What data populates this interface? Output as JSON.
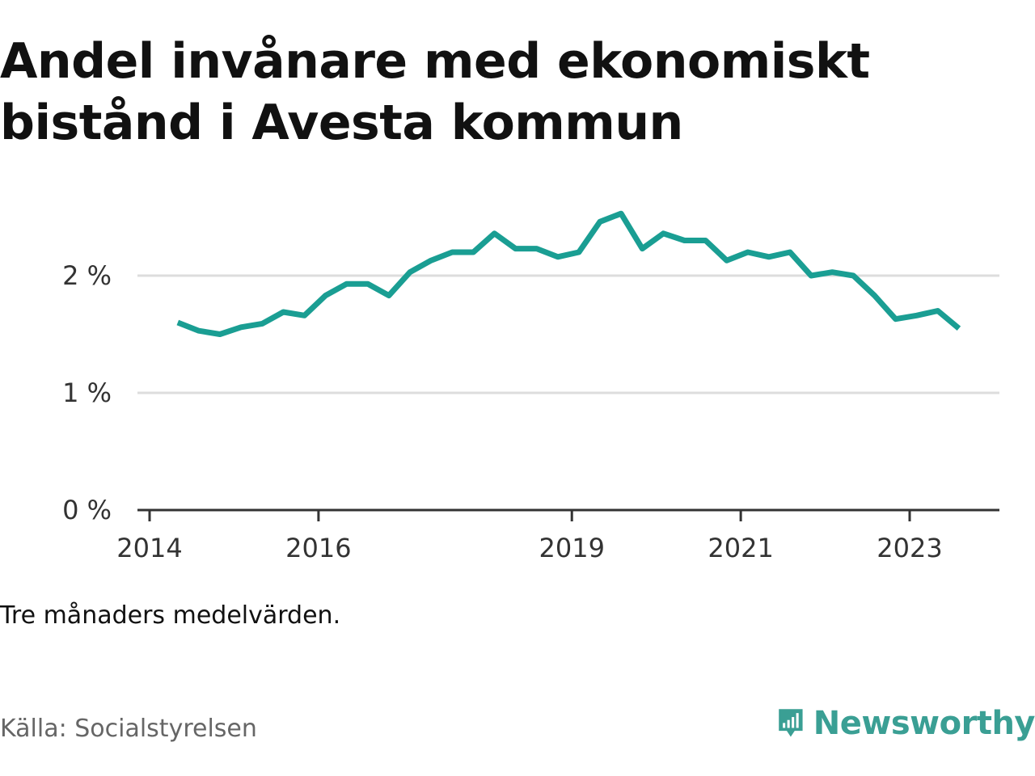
{
  "title": "Andel invånare med ekonomiskt bistånd i Avesta kommun",
  "note": "Tre månaders medelvärden.",
  "source": "Källa: Socialstyrelsen",
  "brand": {
    "name": "Newsworthy",
    "icon": "newsworthy-logo-icon",
    "color": "#3a9f94"
  },
  "chart_data": {
    "type": "line",
    "title": "Andel invånare med ekonomiskt bistånd i Avesta kommun",
    "xlabel": "",
    "ylabel": "",
    "x_ticks": [
      "2014",
      "2016",
      "2019",
      "2021",
      "2023"
    ],
    "y_ticks": [
      "0 %",
      "1 %",
      "2 %"
    ],
    "ylim": [
      0,
      2.6
    ],
    "grid": true,
    "line_color": "#1a9e93",
    "series": [
      {
        "x": [
          "2014-05",
          "2014-08",
          "2014-11",
          "2015-02",
          "2015-05",
          "2015-08",
          "2015-11",
          "2016-02",
          "2016-05",
          "2016-08",
          "2016-11",
          "2017-02",
          "2017-05",
          "2017-08",
          "2017-11",
          "2018-02",
          "2018-05",
          "2018-08",
          "2018-11",
          "2019-02",
          "2019-05",
          "2019-08",
          "2019-11",
          "2020-02",
          "2020-05",
          "2020-08",
          "2020-11",
          "2021-02",
          "2021-05",
          "2021-08",
          "2021-11",
          "2022-02",
          "2022-05",
          "2022-08",
          "2022-11",
          "2023-02",
          "2023-05",
          "2023-08"
        ],
        "values": [
          1.6,
          1.53,
          1.5,
          1.56,
          1.59,
          1.69,
          1.66,
          1.83,
          1.93,
          1.93,
          1.83,
          2.03,
          2.13,
          2.2,
          2.2,
          2.36,
          2.23,
          2.23,
          2.16,
          2.2,
          2.46,
          2.53,
          2.23,
          2.36,
          2.3,
          2.3,
          2.13,
          2.2,
          2.16,
          2.2,
          2.0,
          2.03,
          2.0,
          1.83,
          1.63,
          1.66,
          1.7,
          1.55
        ]
      }
    ]
  }
}
